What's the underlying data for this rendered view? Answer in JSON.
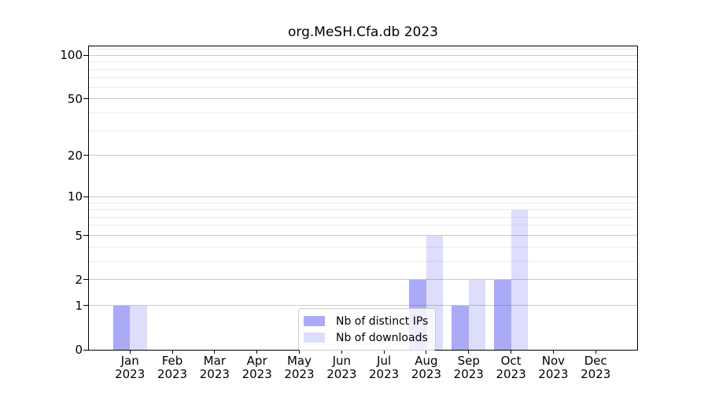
{
  "chart_data": {
    "type": "bar",
    "title": "org.MeSH.Cfa.db 2023",
    "categories": [
      "Jan",
      "Feb",
      "Mar",
      "Apr",
      "May",
      "Jun",
      "Jul",
      "Aug",
      "Sep",
      "Oct",
      "Nov",
      "Dec"
    ],
    "year_label": "2023",
    "series": [
      {
        "name": "Nb of distinct IPs",
        "color": "rgba(85,85,240,0.50)",
        "values": [
          1,
          0,
          0,
          0,
          0,
          0,
          0,
          2,
          1,
          2,
          0,
          0
        ]
      },
      {
        "name": "Nb of downloads",
        "color": "rgba(85,85,240,0.20)",
        "values": [
          1,
          0,
          0,
          0,
          0,
          0,
          0,
          5,
          2,
          8,
          0,
          0
        ]
      }
    ],
    "y_axis": {
      "scale": "log10(1+x)",
      "tick_values": [
        0,
        1,
        2,
        5,
        10,
        20,
        50,
        100
      ],
      "minor_gridline_values": [
        3,
        4,
        6,
        7,
        8,
        9,
        30,
        40,
        60,
        70,
        80,
        90,
        110
      ],
      "ylim": [
        0,
        115
      ]
    },
    "xlabel": "",
    "ylabel": "",
    "grid": true,
    "legend_position": "lower center",
    "colors": {
      "distinct_ips_bar_composite": "#ababf5",
      "downloads_bar_composite": "#dcdcf8",
      "major_gridline": "#c9c9c9",
      "minor_gridline": "#ebebeb",
      "axis": "#000000",
      "background": "#ffffff"
    }
  }
}
